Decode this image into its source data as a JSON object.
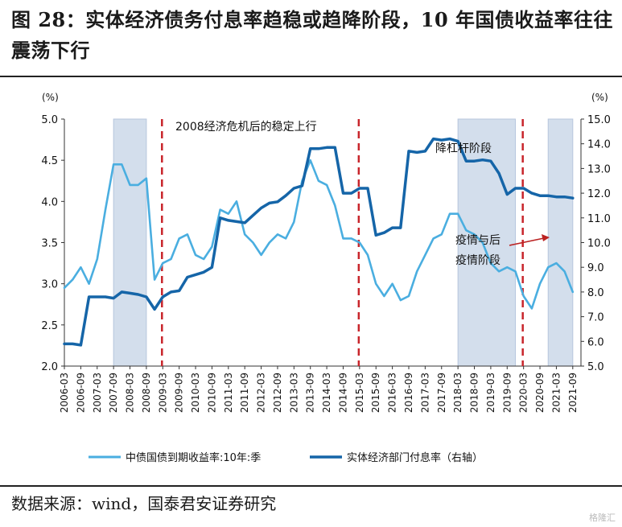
{
  "title": "图 28：实体经济债务付息率趋稳或趋降阶段，10 年国债收益率往往震荡下行",
  "source": "数据来源：wind，国泰君安证券研究",
  "watermark": "格隆汇",
  "chart_data": {
    "type": "line",
    "title": "",
    "y_left_unit": "(%)",
    "y_right_unit": "(%)",
    "ylim_left": [
      2.0,
      5.0
    ],
    "ylim_right": [
      5.0,
      15.0
    ],
    "yticks_left": [
      "2.0",
      "2.5",
      "3.0",
      "3.5",
      "4.0",
      "4.5",
      "5.0"
    ],
    "yticks_right": [
      "5.0",
      "6.0",
      "7.0",
      "8.0",
      "9.0",
      "10.0",
      "11.0",
      "12.0",
      "13.0",
      "14.0",
      "15.0"
    ],
    "x_ticks": [
      "2006-03",
      "2006-09",
      "2007-03",
      "2007-09",
      "2008-03",
      "2008-09",
      "2009-03",
      "2009-09",
      "2010-03",
      "2010-09",
      "2011-03",
      "2011-09",
      "2012-03",
      "2012-09",
      "2013-03",
      "2013-09",
      "2014-03",
      "2014-09",
      "2015-03",
      "2015-09",
      "2016-03",
      "2016-09",
      "2017-03",
      "2017-09",
      "2018-03",
      "2018-09",
      "2019-03",
      "2019-09",
      "2020-03",
      "2020-09",
      "2021-03",
      "2021-09"
    ],
    "shaded_periods": [
      [
        "2007-09",
        "2008-09"
      ],
      [
        "2018-03",
        "2019-12"
      ],
      [
        "2020-12",
        "2021-09"
      ]
    ],
    "dashed_lines": [
      "2009-03",
      "2015-03",
      "2020-03"
    ],
    "annotations": [
      {
        "text": "2008经济危机后的稳定上行"
      },
      {
        "text": "降杠杆阶段"
      },
      {
        "text": "疫情与后"
      },
      {
        "text": "疫情阶段"
      }
    ],
    "series": [
      {
        "name": "中债国债到期收益率:10年:季",
        "axis": "left",
        "color": "#4aaee0",
        "x": [
          "2006-03",
          "2006-06",
          "2006-09",
          "2006-12",
          "2007-03",
          "2007-06",
          "2007-09",
          "2007-12",
          "2008-03",
          "2008-06",
          "2008-09",
          "2008-12",
          "2009-03",
          "2009-06",
          "2009-09",
          "2009-12",
          "2010-03",
          "2010-06",
          "2010-09",
          "2010-12",
          "2011-03",
          "2011-06",
          "2011-09",
          "2011-12",
          "2012-03",
          "2012-06",
          "2012-09",
          "2012-12",
          "2013-03",
          "2013-06",
          "2013-09",
          "2013-12",
          "2014-03",
          "2014-06",
          "2014-09",
          "2014-12",
          "2015-03",
          "2015-06",
          "2015-09",
          "2015-12",
          "2016-03",
          "2016-06",
          "2016-09",
          "2016-12",
          "2017-03",
          "2017-06",
          "2017-09",
          "2017-12",
          "2018-03",
          "2018-06",
          "2018-09",
          "2018-12",
          "2019-03",
          "2019-06",
          "2019-09",
          "2019-12",
          "2020-03",
          "2020-06",
          "2020-09",
          "2020-12",
          "2021-03",
          "2021-06",
          "2021-09"
        ],
        "values": [
          2.95,
          3.05,
          3.2,
          3.0,
          3.3,
          3.9,
          4.45,
          4.45,
          4.2,
          4.2,
          4.28,
          3.05,
          3.25,
          3.3,
          3.55,
          3.6,
          3.35,
          3.3,
          3.45,
          3.9,
          3.85,
          4.0,
          3.6,
          3.5,
          3.35,
          3.5,
          3.6,
          3.55,
          3.75,
          4.25,
          4.5,
          4.25,
          4.2,
          3.95,
          3.55,
          3.55,
          3.5,
          3.35,
          3.0,
          2.85,
          3.0,
          2.8,
          2.85,
          3.15,
          3.35,
          3.55,
          3.6,
          3.85,
          3.85,
          3.65,
          3.6,
          3.5,
          3.25,
          3.15,
          3.2,
          3.15,
          2.85,
          2.7,
          3.0,
          3.2,
          3.25,
          3.15,
          2.9
        ]
      },
      {
        "name": "实体经济部门付息率（右轴）",
        "axis": "right",
        "color": "#1565a8",
        "x": [
          "2006-03",
          "2006-06",
          "2006-09",
          "2006-12",
          "2007-03",
          "2007-06",
          "2007-09",
          "2007-12",
          "2008-03",
          "2008-06",
          "2008-09",
          "2008-12",
          "2009-03",
          "2009-06",
          "2009-09",
          "2009-12",
          "2010-03",
          "2010-06",
          "2010-09",
          "2010-12",
          "2011-03",
          "2011-06",
          "2011-09",
          "2011-12",
          "2012-03",
          "2012-06",
          "2012-09",
          "2012-12",
          "2013-03",
          "2013-06",
          "2013-09",
          "2013-12",
          "2014-03",
          "2014-06",
          "2014-09",
          "2014-12",
          "2015-03",
          "2015-06",
          "2015-09",
          "2015-12",
          "2016-03",
          "2016-06",
          "2016-09",
          "2016-12",
          "2017-03",
          "2017-06",
          "2017-09",
          "2017-12",
          "2018-03",
          "2018-06",
          "2018-09",
          "2018-12",
          "2019-03",
          "2019-06",
          "2019-09",
          "2019-12",
          "2020-03",
          "2020-06",
          "2020-09",
          "2020-12",
          "2021-03",
          "2021-06",
          "2021-09"
        ],
        "values": [
          5.9,
          5.9,
          5.85,
          7.8,
          7.8,
          7.8,
          7.75,
          8.0,
          7.95,
          7.9,
          7.8,
          7.3,
          7.8,
          8.0,
          8.05,
          8.6,
          8.7,
          8.8,
          9.0,
          11.0,
          10.9,
          10.85,
          10.8,
          11.1,
          11.4,
          11.6,
          11.65,
          11.9,
          12.2,
          12.3,
          13.8,
          13.8,
          13.85,
          13.85,
          12.0,
          12.0,
          12.2,
          12.2,
          10.3,
          10.4,
          10.6,
          10.6,
          13.7,
          13.65,
          13.7,
          14.2,
          14.15,
          14.2,
          14.1,
          13.3,
          13.3,
          13.35,
          13.3,
          12.8,
          11.95,
          12.2,
          12.2,
          12.0,
          11.9,
          11.9,
          11.85,
          11.85,
          11.8
        ]
      }
    ]
  }
}
